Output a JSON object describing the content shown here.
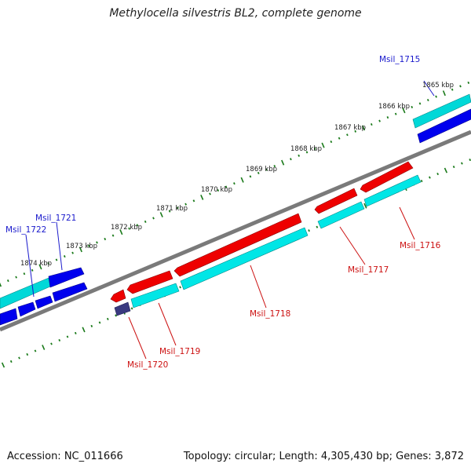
{
  "title": "Methylocella silvestris BL2, complete genome",
  "footer": {
    "accession": "Accession: NC_011666",
    "summary": "Topology: circular; Length: 4,305,430 bp; Genes: 3,872"
  },
  "colors": {
    "backbone": "#7a7a7a",
    "tick": "#1a7a1a",
    "forward_gene": "#0000ee",
    "forward_cds": "#00d8d8",
    "reverse_gene": "#ee0000",
    "reverse_cds": "#00e6e6",
    "misc": "#3a3a80",
    "forward_label": "#1a1acc",
    "reverse_label": "#cc1111"
  },
  "scale_labels": [
    "1865 kbp",
    "1866 kbp",
    "1867 kbp",
    "1868 kbp",
    "1869 kbp",
    "1870 kbp",
    "1871 kbp",
    "1872 kbp",
    "1873 kbp",
    "1874 kbp"
  ],
  "forward_labels": [
    "Msil_1715",
    "Msil_1721",
    "Msil_1722"
  ],
  "reverse_labels": [
    "Msil_1716",
    "Msil_1717",
    "Msil_1718",
    "Msil_1719",
    "Msil_1720"
  ]
}
